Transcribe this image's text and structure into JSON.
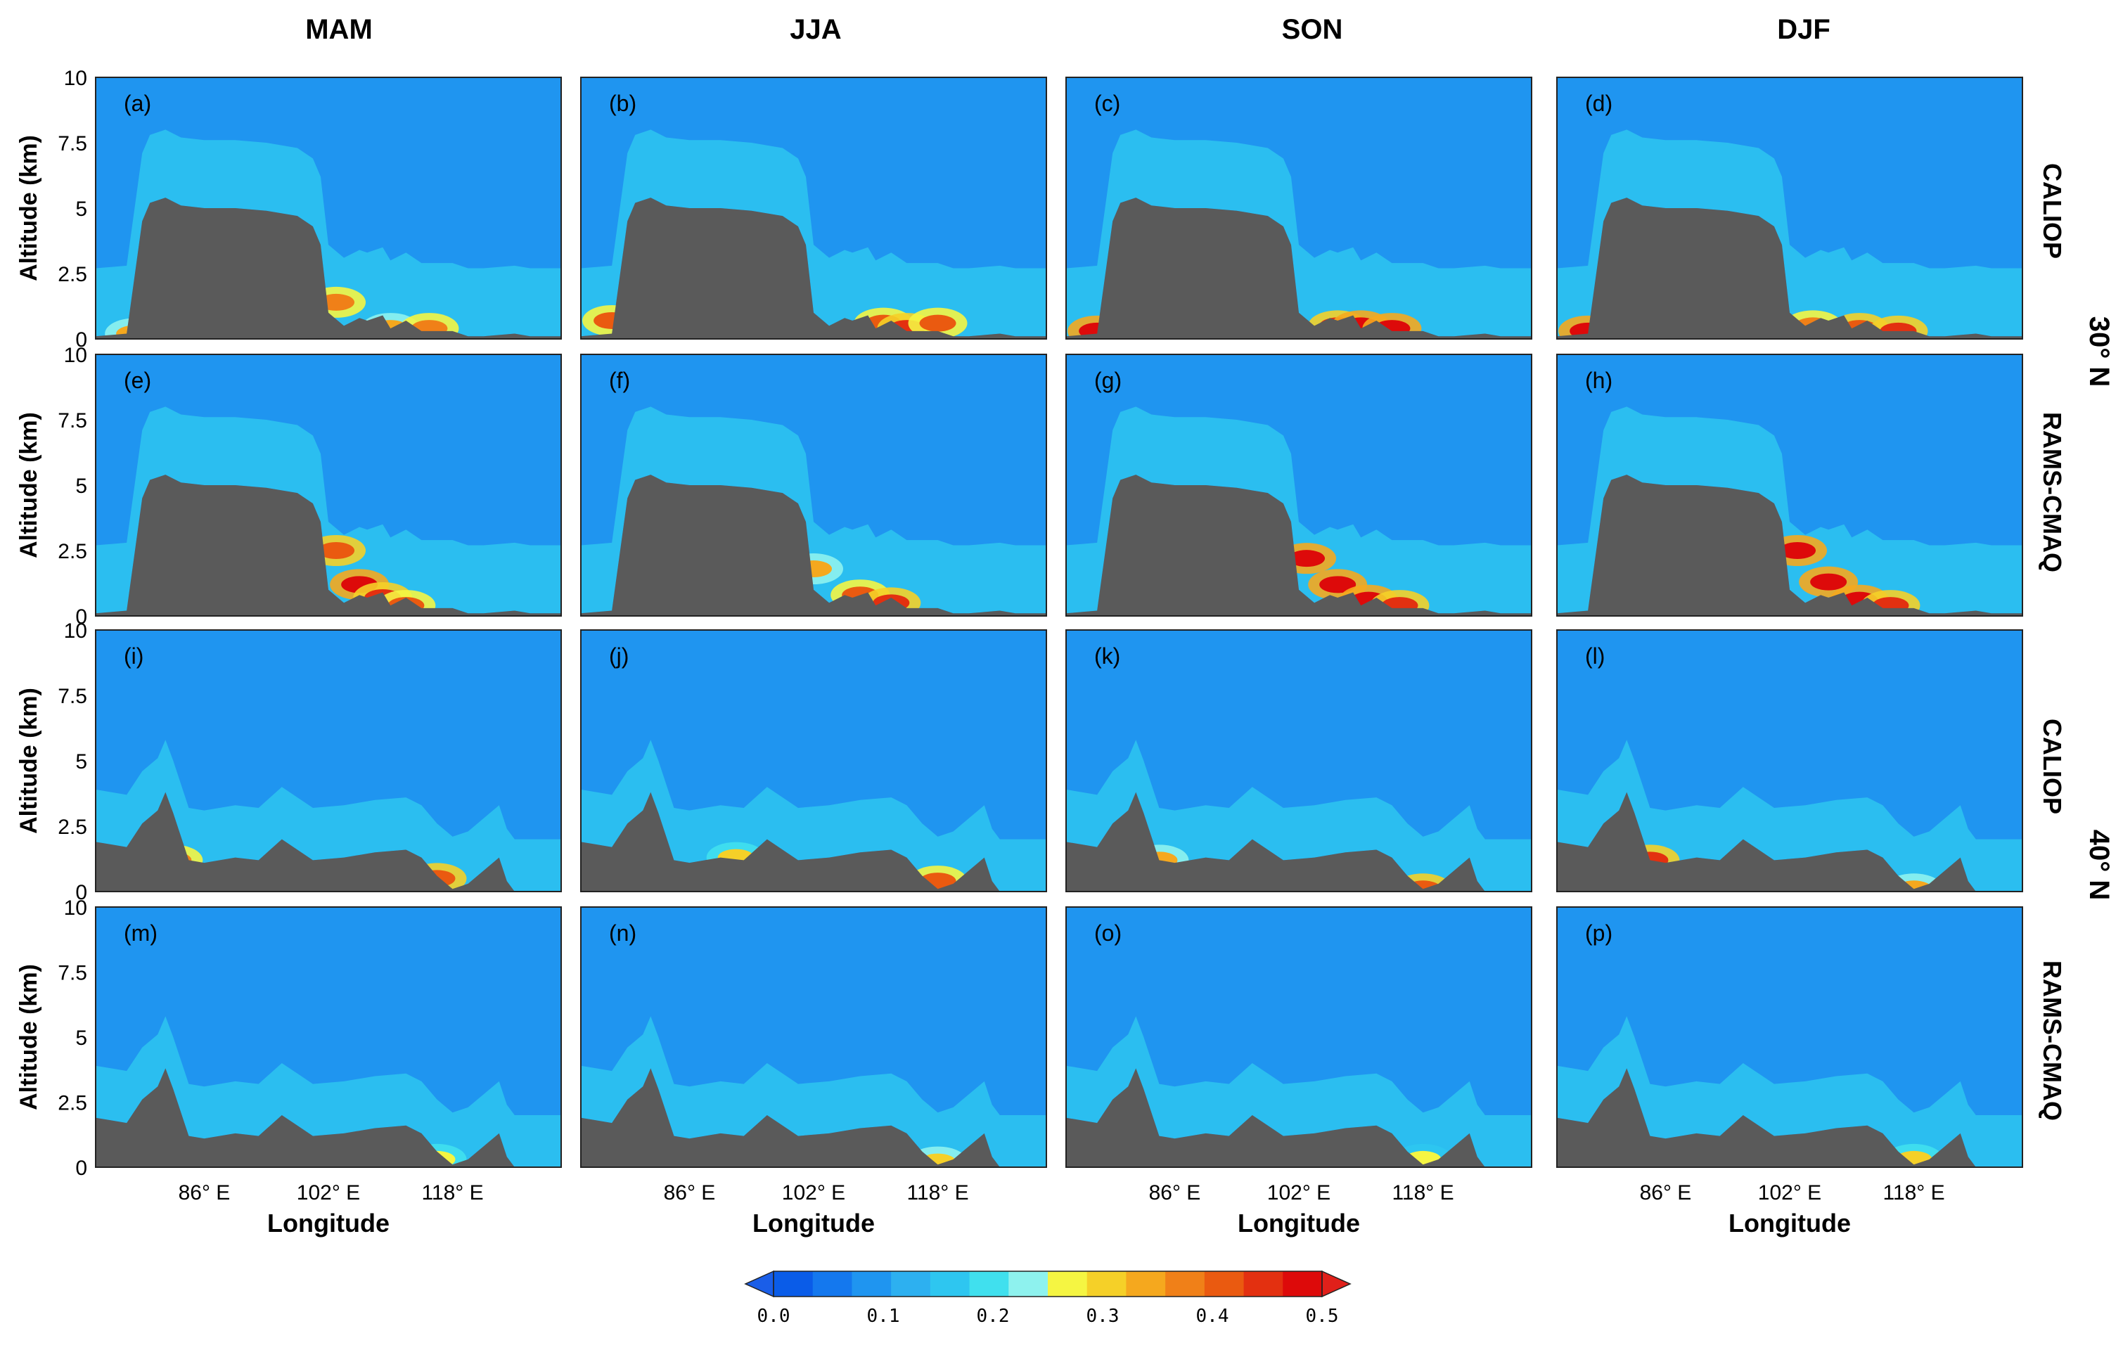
{
  "chart_data": {
    "type": "heatmap",
    "description_units": {
      "yaxis_label": "Altitude (km)",
      "xaxis_label": "Longitude"
    },
    "seasons": [
      "MAM",
      "JJA",
      "SON",
      "DJF"
    ],
    "row_labels": [
      "CALIOP",
      "RAMS-CMAQ",
      "CALIOP",
      "RAMS-CMAQ"
    ],
    "latitude_labels": [
      "30° N",
      "40° N"
    ],
    "yticks": [
      {
        "value": 0,
        "label": "0"
      },
      {
        "value": 2.5,
        "label": "2.5"
      },
      {
        "value": 5,
        "label": "5"
      },
      {
        "value": 7.5,
        "label": "7.5"
      },
      {
        "value": 10,
        "label": "10"
      }
    ],
    "ylim": [
      0,
      10
    ],
    "xlim": [
      72,
      132
    ],
    "xticks": [
      {
        "value": 86,
        "label": "86° E"
      },
      {
        "value": 102,
        "label": "102° E"
      },
      {
        "value": 118,
        "label": "118° E"
      }
    ],
    "panel_letters": [
      "(a)",
      "(b)",
      "(c)",
      "(d)",
      "(e)",
      "(f)",
      "(g)",
      "(h)",
      "(i)",
      "(j)",
      "(k)",
      "(l)",
      "(m)",
      "(n)",
      "(o)",
      "(p)"
    ],
    "colorbar": {
      "min": 0.0,
      "max": 0.5,
      "tick_labels": [
        "0.0",
        "0.1",
        "0.2",
        "0.3",
        "0.4",
        "0.5"
      ],
      "tick_values": [
        0.0,
        0.1,
        0.2,
        0.3,
        0.4,
        0.5
      ],
      "colors": [
        "#0a5ce8",
        "#1478ee",
        "#1f95f0",
        "#2db0f0",
        "#2ec6f0",
        "#40e0ee",
        "#8ef2ee",
        "#f5f542",
        "#f5d028",
        "#f5a81e",
        "#f08018",
        "#ea5a10",
        "#e33010",
        "#dd0a0a"
      ],
      "extend": "both"
    },
    "background_value": 0.1,
    "terrain_color": "#5a5a5a",
    "terrain_30N": [
      [
        72,
        0.1
      ],
      [
        74,
        0.15
      ],
      [
        76,
        0.2
      ],
      [
        78,
        4.5
      ],
      [
        79,
        5.2
      ],
      [
        81,
        5.4
      ],
      [
        83,
        5.1
      ],
      [
        86,
        5
      ],
      [
        90,
        5
      ],
      [
        94,
        4.9
      ],
      [
        98,
        4.7
      ],
      [
        100,
        4.3
      ],
      [
        101,
        3.6
      ],
      [
        102,
        1
      ],
      [
        104,
        0.5
      ],
      [
        106,
        0.8
      ],
      [
        107,
        0.7
      ],
      [
        109,
        0.9
      ],
      [
        110,
        0.4
      ],
      [
        112,
        0.7
      ],
      [
        114,
        0.3
      ],
      [
        118,
        0.3
      ],
      [
        120,
        0.1
      ],
      [
        122,
        0.1
      ],
      [
        126,
        0.2
      ],
      [
        128,
        0.1
      ],
      [
        132,
        0.1
      ]
    ],
    "terrain_40N": [
      [
        72,
        1.9
      ],
      [
        74,
        1.8
      ],
      [
        76,
        1.7
      ],
      [
        78,
        2.6
      ],
      [
        80,
        3.1
      ],
      [
        81,
        3.8
      ],
      [
        82,
        3
      ],
      [
        84,
        1.2
      ],
      [
        86,
        1.1
      ],
      [
        90,
        1.3
      ],
      [
        93,
        1.2
      ],
      [
        96,
        2
      ],
      [
        98,
        1.6
      ],
      [
        100,
        1.2
      ],
      [
        104,
        1.3
      ],
      [
        108,
        1.5
      ],
      [
        112,
        1.6
      ],
      [
        114,
        1.3
      ],
      [
        116,
        0.6
      ],
      [
        118,
        0.1
      ],
      [
        120,
        0.3
      ],
      [
        122,
        0.8
      ],
      [
        124,
        1.3
      ],
      [
        125,
        0.4
      ],
      [
        126,
        0
      ],
      [
        132,
        0
      ]
    ],
    "hotspots": {
      "a": [
        [
          77,
          0.2,
          0.35
        ],
        [
          103,
          1.4,
          0.38
        ],
        [
          110,
          0.4,
          0.35
        ],
        [
          115,
          0.4,
          0.38
        ]
      ],
      "b": [
        [
          76,
          0.7,
          0.4
        ],
        [
          111,
          0.6,
          0.4
        ],
        [
          114,
          0.4,
          0.45
        ],
        [
          118,
          0.6,
          0.4
        ]
      ],
      "c": [
        [
          76,
          0.3,
          0.48
        ],
        [
          107,
          0.5,
          0.45
        ],
        [
          110,
          0.5,
          0.48
        ],
        [
          114,
          0.4,
          0.5
        ]
      ],
      "d": [
        [
          76,
          0.3,
          0.48
        ],
        [
          105,
          0.5,
          0.38
        ],
        [
          111,
          0.4,
          0.42
        ],
        [
          116,
          0.3,
          0.45
        ]
      ],
      "e": [
        [
          103,
          2.5,
          0.42
        ],
        [
          106,
          1.2,
          0.48
        ],
        [
          109,
          0.7,
          0.45
        ],
        [
          112,
          0.4,
          0.4
        ]
      ],
      "f": [
        [
          102,
          1.8,
          0.33
        ],
        [
          108,
          0.8,
          0.4
        ],
        [
          112,
          0.5,
          0.45
        ]
      ],
      "g": [
        [
          103,
          2.2,
          0.48
        ],
        [
          107,
          1.2,
          0.5
        ],
        [
          111,
          0.6,
          0.5
        ],
        [
          115,
          0.4,
          0.45
        ]
      ],
      "h": [
        [
          103,
          2.5,
          0.5
        ],
        [
          107,
          1.3,
          0.5
        ],
        [
          111,
          0.6,
          0.5
        ],
        [
          115,
          0.4,
          0.45
        ]
      ],
      "i": [
        [
          82,
          1.2,
          0.38
        ],
        [
          116,
          0.5,
          0.42
        ]
      ],
      "j": [
        [
          92,
          1.3,
          0.3
        ],
        [
          118,
          0.4,
          0.4
        ]
      ],
      "k": [
        [
          84,
          1.2,
          0.35
        ],
        [
          118,
          0.1,
          0.42
        ]
      ],
      "l": [
        [
          84,
          1.2,
          0.45
        ],
        [
          118,
          0.1,
          0.35
        ]
      ],
      "m": [
        [
          116,
          0.3,
          0.28
        ]
      ],
      "n": [
        [
          118,
          0.2,
          0.32
        ]
      ],
      "o": [
        [
          118,
          0.3,
          0.25
        ]
      ],
      "p": [
        [
          118,
          0.3,
          0.3
        ]
      ]
    }
  }
}
